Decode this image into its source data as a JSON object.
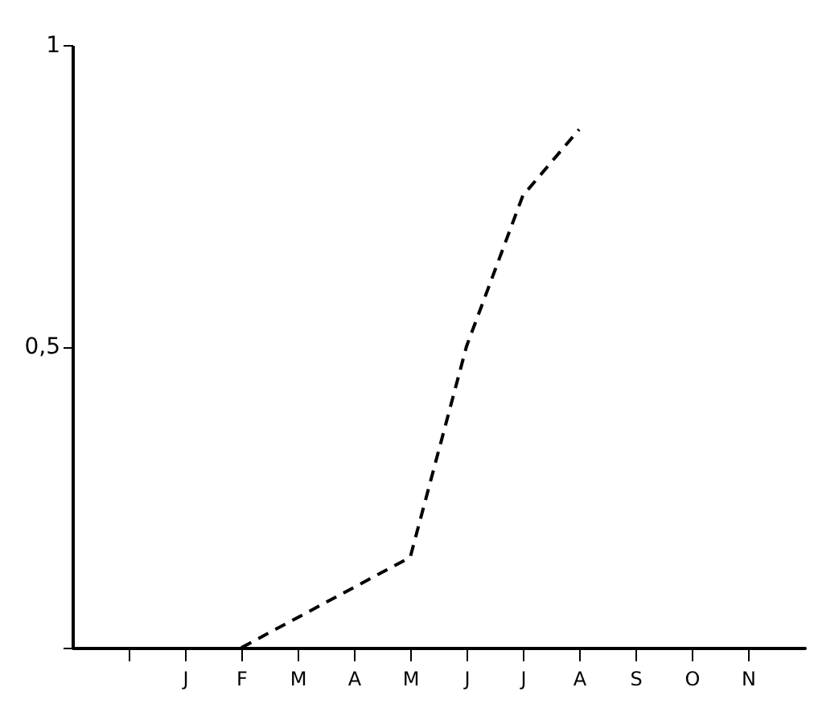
{
  "chart_data": {
    "type": "line",
    "categories": [
      null,
      "J",
      "F",
      "M",
      "A",
      "M",
      "J",
      "J",
      "A",
      "S",
      "O",
      "N"
    ],
    "series": [
      {
        "color": "#000000",
        "values": [
          null,
          null,
          0,
          null,
          null,
          0.15,
          0.5,
          0.75,
          0.86,
          null,
          null,
          null
        ]
      }
    ],
    "ylim": [
      0,
      1
    ],
    "yticks": [
      {
        "value": 0,
        "label": null
      },
      {
        "value": 0.5,
        "label": "0,5"
      },
      {
        "value": 1,
        "label": "1"
      }
    ],
    "line_style": "dashed",
    "grid": false,
    "legend": false
  }
}
